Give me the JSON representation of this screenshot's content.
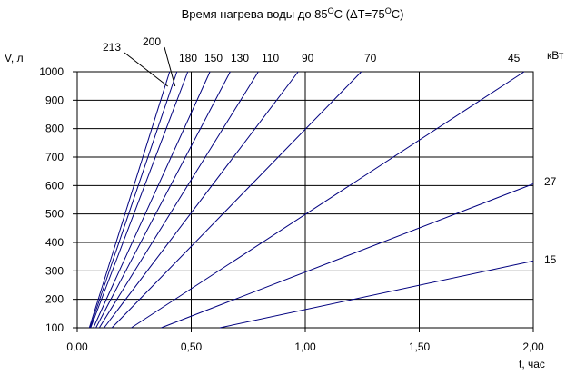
{
  "chart_data": {
    "type": "line",
    "title": {
      "pre": "Время нагрева воды до 85",
      "sup1": "O",
      "mid": "C (ΔT=75",
      "sup2": "O",
      "post": "C)"
    },
    "xlabel": "t, час",
    "ylabel": "V, л",
    "unit_label": "кВт",
    "xlim": [
      0,
      2.0
    ],
    "ylim": [
      100,
      1000
    ],
    "x_ticks": [
      0,
      0.5,
      1.0,
      1.5,
      2.0
    ],
    "x_tick_labels": [
      "0,00",
      "0,50",
      "1,00",
      "1,50",
      "2,00"
    ],
    "y_ticks": [
      100,
      200,
      300,
      400,
      500,
      600,
      700,
      800,
      900,
      1000
    ],
    "y_tick_labels": [
      "100",
      "200",
      "300",
      "400",
      "500",
      "600",
      "700",
      "800",
      "900",
      "1000"
    ],
    "grid": true,
    "line_color": "#00007f",
    "series": [
      {
        "name": "213",
        "points": [
          [
            0.053,
            100
          ],
          [
            0.405,
            1000
          ]
        ]
      },
      {
        "name": "200",
        "points": [
          [
            0.056,
            100
          ],
          [
            0.437,
            1000
          ]
        ]
      },
      {
        "name": "180",
        "points": [
          [
            0.059,
            100
          ],
          [
            0.485,
            1000
          ]
        ]
      },
      {
        "name": "150",
        "points": [
          [
            0.071,
            100
          ],
          [
            0.582,
            1000
          ]
        ]
      },
      {
        "name": "130",
        "points": [
          [
            0.082,
            100
          ],
          [
            0.671,
            1000
          ]
        ]
      },
      {
        "name": "110",
        "points": [
          [
            0.097,
            100
          ],
          [
            0.794,
            1000
          ]
        ]
      },
      {
        "name": "90",
        "points": [
          [
            0.118,
            100
          ],
          [
            0.969,
            1000
          ]
        ]
      },
      {
        "name": "70",
        "points": [
          [
            0.152,
            100
          ],
          [
            1.246,
            1000
          ]
        ]
      },
      {
        "name": "45",
        "points": [
          [
            0.237,
            100
          ],
          [
            1.96,
            1000
          ]
        ]
      },
      {
        "name": "27",
        "points": [
          [
            0.368,
            100
          ],
          [
            2.0,
            606
          ]
        ]
      },
      {
        "name": "15",
        "points": [
          [
            0.625,
            100
          ],
          [
            2.0,
            335
          ]
        ]
      }
    ]
  }
}
